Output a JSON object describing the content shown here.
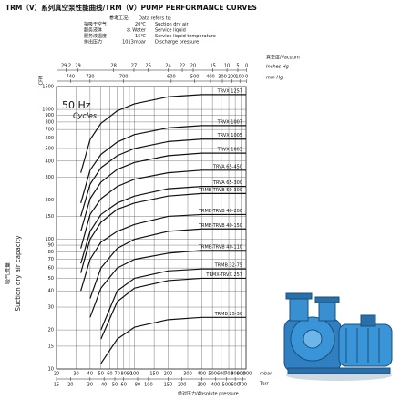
{
  "chart_data": {
    "type": "line",
    "title": "TRM（V）系列真空泵性能曲线/TRM（V）PUMP PERFORMANCE CURVES",
    "conditions": [
      {
        "label": "参考工况:",
        "en": "Data refers to:"
      },
      {
        "label": "抽吸干空气",
        "value": "20℃",
        "en": "Suction dry air"
      },
      {
        "label": "服务液体",
        "value": "水 Water",
        "en": "Service liquid"
      },
      {
        "label": "服务液温度",
        "value": "15℃",
        "en": "Service liquid temperature"
      },
      {
        "label": "排出压力",
        "value": "1013mbar",
        "en": "Discharge pressure"
      }
    ],
    "vacuum_label": "真空度/Vacuum",
    "x_label": "绝对压力/Absolute pressure",
    "y_unit": "CFM",
    "y_label": "Suction dry air capacity",
    "y_label_zh": "吸气流量",
    "frequency": "50 Hz",
    "frequency_unit": "Cycles",
    "x_unit": "mbar",
    "torr_unit": "Torr",
    "inhg_unit": "Inches Hg",
    "mmhg_unit": "mm Hg",
    "x_log": true,
    "y_log": true,
    "grid": true,
    "xlim": [
      20,
      1000
    ],
    "ylim": [
      10,
      1500
    ],
    "xticks": [
      20,
      30,
      40,
      50,
      60,
      70,
      80,
      90,
      100,
      150,
      200,
      300,
      400,
      500,
      600,
      700,
      800,
      900,
      1000
    ],
    "yticks": [
      10,
      15,
      20,
      30,
      40,
      50,
      60,
      70,
      80,
      90,
      100,
      150,
      200,
      300,
      400,
      500,
      600,
      700,
      800,
      900,
      1000,
      1500
    ],
    "torr_ticks": [
      15,
      20,
      30,
      40,
      50,
      60,
      80,
      100,
      150,
      200,
      300,
      400,
      500,
      600,
      700
    ],
    "inhg_ticks": [
      29.2,
      29,
      28,
      27,
      26,
      24,
      22,
      20,
      15,
      10,
      5,
      0
    ],
    "mmhg_ticks": [
      740,
      730,
      700,
      600,
      500,
      400,
      300,
      200,
      100,
      0
    ],
    "x": [
      33,
      40,
      50,
      70,
      100,
      200,
      400,
      1000
    ],
    "series": [
      {
        "name": "TRVX 1257",
        "color": "#111111",
        "values": [
          325,
          585,
          780,
          975,
          1105,
          1250,
          1300,
          1300
        ]
      },
      {
        "name": "TRVX 1007",
        "color": "#111111",
        "values": [
          190,
          340,
          450,
          560,
          640,
          720,
          750,
          750
        ]
      },
      {
        "name": "TRVX 1005",
        "color": "#111111",
        "values": [
          150,
          265,
          355,
          440,
          500,
          565,
          590,
          590
        ]
      },
      {
        "name": "TRVX 1003",
        "color": "#111111",
        "values": [
          115,
          205,
          275,
          345,
          390,
          440,
          460,
          460
        ]
      },
      {
        "name": "TRVA 65-450",
        "color": "#111111",
        "values": [
          85,
          155,
          205,
          255,
          290,
          325,
          340,
          340
        ]
      },
      {
        "name": "TRVA 65-300",
        "color": "#111111",
        "values": [
          65,
          115,
          155,
          190,
          215,
          245,
          255,
          255
        ]
      },
      {
        "name": "TRMB-TRVB 50-300",
        "color": "#111111",
        "values": [
          55,
          100,
          135,
          170,
          190,
          215,
          225,
          225
        ]
      },
      {
        "name": "TRMB-TRVB 40-200",
        "color": "#111111",
        "values": [
          40,
          70,
          95,
          115,
          130,
          150,
          155,
          155
        ]
      },
      {
        "name": "TRMB-TRVB 40-150",
        "color": "#111111",
        "values": [
          null,
          35,
          60,
          85,
          100,
          115,
          120,
          120
        ]
      },
      {
        "name": "TRMB-TRVB 40-110",
        "color": "#111111",
        "values": [
          null,
          25,
          42,
          60,
          70,
          78,
          82,
          82
        ]
      },
      {
        "name": "TRMB 32-75",
        "color": "#111111",
        "values": [
          null,
          null,
          20,
          40,
          50,
          57,
          59,
          59
        ]
      },
      {
        "name": "TRMX-TRVX 257",
        "color": "#111111",
        "values": [
          null,
          null,
          17,
          33,
          42,
          48,
          50,
          50
        ]
      },
      {
        "name": "TRMB 25-30",
        "color": "#111111",
        "values": [
          null,
          null,
          11,
          17,
          21,
          24,
          25,
          25
        ]
      }
    ]
  }
}
